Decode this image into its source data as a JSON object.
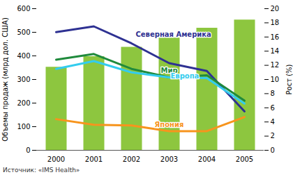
{
  "chart_data": {
    "type": "bar",
    "categories": [
      "2000",
      "2001",
      "2002",
      "2003",
      "2004",
      "2005"
    ],
    "values": [
      352,
      397,
      437,
      476,
      518,
      552
    ],
    "color": "#8dc63f",
    "y_label": "Объемы продаж (млрд дол. США)",
    "y2_label": "Рост (%)",
    "ylim": [
      0,
      600
    ],
    "yticks": [
      0,
      100,
      200,
      300,
      400,
      500,
      600
    ],
    "y2lim": [
      0,
      20
    ],
    "y2ticks": [
      0,
      2,
      4,
      6,
      8,
      10,
      12,
      14,
      16,
      18,
      20
    ],
    "grid": false,
    "series": [
      {
        "name": "Северная Америка",
        "color": "#2e3192",
        "type": "line",
        "axis": "y2",
        "values": [
          16.7,
          17.5,
          15.1,
          12.3,
          11.2,
          5.5
        ]
      },
      {
        "name": "Мир",
        "color": "#1f8a3c",
        "type": "line",
        "axis": "y2",
        "values": [
          12.8,
          13.6,
          11.5,
          10.3,
          10.6,
          7.0
        ]
      },
      {
        "name": "Европа",
        "color": "#33ccee",
        "type": "line",
        "axis": "y2",
        "values": [
          11.5,
          12.6,
          11.0,
          10.3,
          10.2,
          6.6
        ]
      },
      {
        "name": "Япония",
        "color": "#f7941d",
        "type": "line",
        "axis": "y2",
        "values": [
          4.4,
          3.6,
          3.5,
          2.7,
          2.7,
          4.7
        ]
      }
    ],
    "caption": "Источник: «IMS Health»"
  }
}
